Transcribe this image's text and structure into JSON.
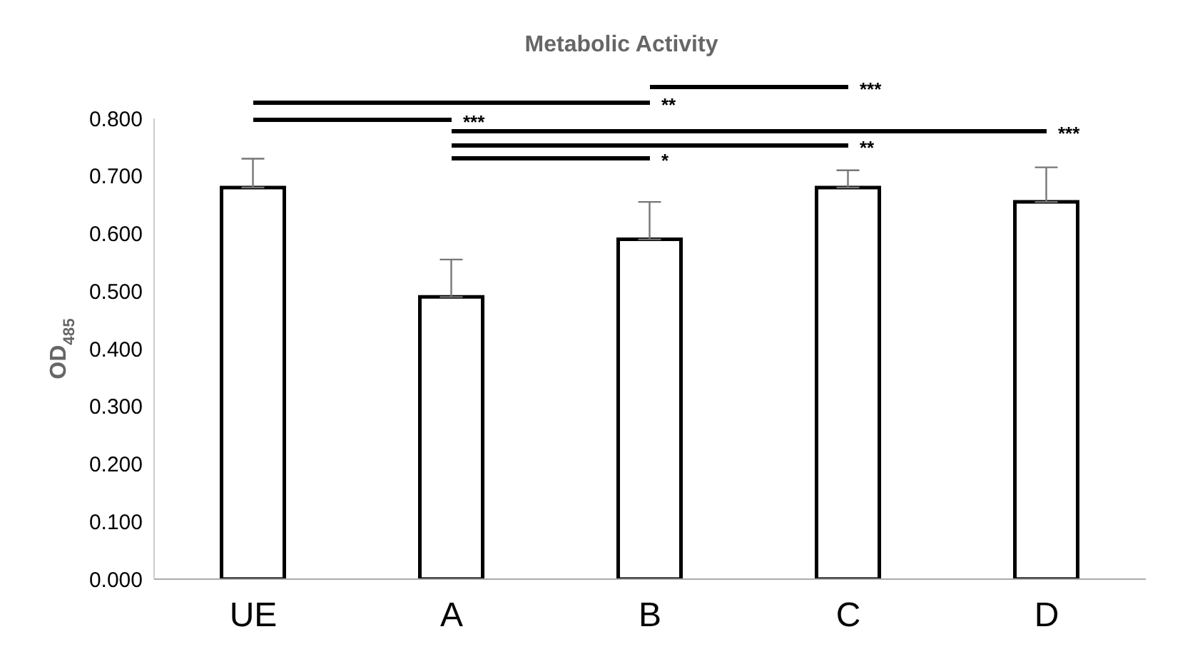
{
  "chart_data": {
    "type": "bar",
    "title": "Metabolic Activity",
    "ylabel": "OD$_{485}$",
    "categories": [
      "UE",
      "A",
      "B",
      "C",
      "D"
    ],
    "values": [
      0.68,
      0.49,
      0.59,
      0.68,
      0.655
    ],
    "errors": [
      [
        0.68,
        0.73
      ],
      [
        0.49,
        0.555
      ],
      [
        0.59,
        0.655
      ],
      [
        0.68,
        0.71
      ],
      [
        0.655,
        0.715
      ]
    ],
    "color": "#ffffff",
    "ylim": [
      0,
      0.8
    ],
    "yticks": [
      {
        "value": 0,
        "label": "0.000"
      },
      {
        "value": 0.1,
        "label": "0.100"
      },
      {
        "value": 0.2,
        "label": "0.200"
      },
      {
        "value": 0.3,
        "label": "0.300"
      },
      {
        "value": 0.4,
        "label": "0.400"
      },
      {
        "value": 0.5,
        "label": "0.500"
      },
      {
        "value": 0.6,
        "label": "0.600"
      },
      {
        "value": 0.7,
        "label": "0.700"
      },
      {
        "value": 0.8,
        "label": "0.800"
      }
    ],
    "annotations": [
      "**",
      "***",
      "***",
      "***",
      "**",
      "*"
    ]
  }
}
